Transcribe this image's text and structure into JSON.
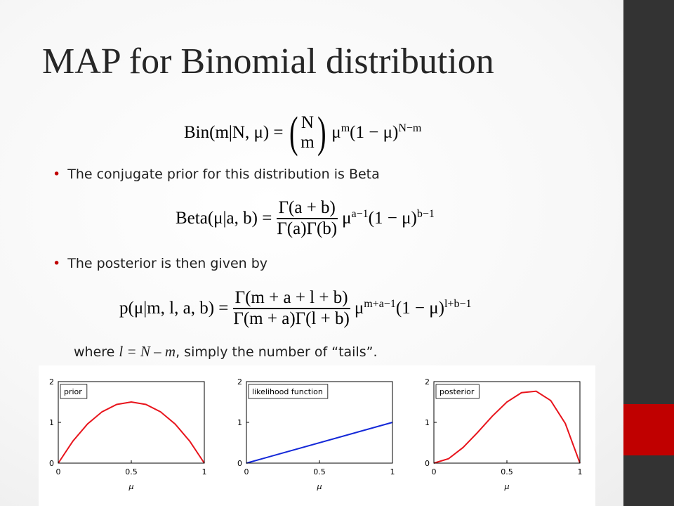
{
  "slide": {
    "title": "MAP for Binomial distribution",
    "equations": [
      {
        "lhs": "Bin(m|N, μ) =",
        "binom_top": "N",
        "binom_bottom": "m",
        "base1": "μ",
        "exp1": "m",
        "base2": "(1 − μ)",
        "exp2": "N−m"
      },
      {
        "lhs": "Beta(μ|a, b) =",
        "numerator": "Γ(a + b)",
        "denominator": "Γ(a)Γ(b)",
        "base1": "μ",
        "exp1": "a−1",
        "base2": "(1 − μ)",
        "exp2": "b−1"
      },
      {
        "lhs": "p(μ|m, l, a, b) =",
        "numerator": "Γ(m + a + l + b)",
        "denominator": "Γ(m + a)Γ(l + b)",
        "base1": "μ",
        "exp1": "m+a−1",
        "base2": "(1 − μ)",
        "exp2": "l+b−1"
      }
    ],
    "bullets": [
      "The conjugate prior for this distribution is Beta",
      "The posterior is then given by"
    ],
    "note": {
      "before": "where ",
      "math": "l = N – m",
      "after": ", simply the number of “tails”."
    }
  },
  "chart_data": [
    {
      "type": "line",
      "title": "prior",
      "xlabel": "μ",
      "x": [
        0,
        0.1,
        0.2,
        0.3,
        0.4,
        0.5,
        0.6,
        0.7,
        0.8,
        0.9,
        1
      ],
      "series": [
        {
          "color": "#e8141c",
          "values": [
            0,
            0.54,
            0.96,
            1.26,
            1.44,
            1.5,
            1.44,
            1.26,
            0.96,
            0.54,
            0
          ]
        }
      ],
      "xlim": [
        0,
        1
      ],
      "ylim": [
        0,
        2
      ],
      "xticks": [
        0,
        0.5,
        1
      ],
      "yticks": [
        0,
        1,
        2
      ]
    },
    {
      "type": "line",
      "title": "likelihood function",
      "xlabel": "μ",
      "x": [
        0,
        1
      ],
      "series": [
        {
          "color": "#1428d8",
          "values": [
            0,
            1
          ]
        }
      ],
      "xlim": [
        0,
        1
      ],
      "ylim": [
        0,
        2
      ],
      "xticks": [
        0,
        0.5,
        1
      ],
      "yticks": [
        0,
        1,
        2
      ]
    },
    {
      "type": "line",
      "title": "posterior",
      "xlabel": "μ",
      "x": [
        0,
        0.1,
        0.2,
        0.3,
        0.4,
        0.5,
        0.6,
        0.7,
        0.8,
        0.9,
        1
      ],
      "series": [
        {
          "color": "#e8141c",
          "values": [
            0,
            0.108,
            0.384,
            0.756,
            1.152,
            1.5,
            1.728,
            1.764,
            1.536,
            0.972,
            0
          ]
        }
      ],
      "xlim": [
        0,
        1
      ],
      "ylim": [
        0,
        2
      ],
      "xticks": [
        0,
        0.5,
        1
      ],
      "yticks": [
        0,
        1,
        2
      ]
    }
  ]
}
